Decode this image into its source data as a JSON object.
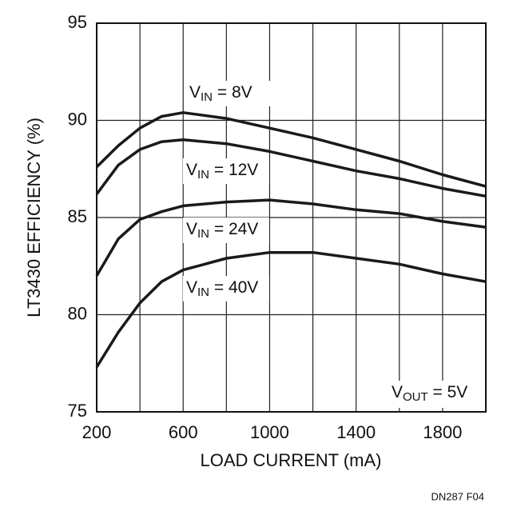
{
  "chart_data": {
    "type": "line",
    "x_label": "LOAD CURRENT (mA)",
    "y_label": "LT3430 EFFICIENCY (%)",
    "footer": "DN287 F04",
    "annotation": "VOUT = 5V",
    "x": [
      200,
      300,
      400,
      500,
      600,
      800,
      1000,
      1200,
      1400,
      1600,
      1800,
      2000
    ],
    "series": [
      {
        "name": "VIN = 8V",
        "color": "#1a1a1a",
        "values": [
          87.6,
          88.7,
          89.6,
          90.2,
          90.4,
          90.1,
          89.6,
          89.1,
          88.5,
          87.9,
          87.2,
          86.6
        ]
      },
      {
        "name": "VIN = 12V",
        "color": "#1a1a1a",
        "values": [
          86.2,
          87.7,
          88.5,
          88.9,
          89.0,
          88.8,
          88.4,
          87.9,
          87.4,
          87.0,
          86.5,
          86.1
        ]
      },
      {
        "name": "VIN = 24V",
        "color": "#1a1a1a",
        "values": [
          82.0,
          83.9,
          84.9,
          85.3,
          85.6,
          85.8,
          85.9,
          85.7,
          85.4,
          85.2,
          84.8,
          84.5
        ]
      },
      {
        "name": "VIN = 40V",
        "color": "#1a1a1a",
        "values": [
          77.3,
          79.1,
          80.6,
          81.7,
          82.3,
          82.9,
          83.2,
          83.2,
          82.9,
          82.6,
          82.1,
          81.7
        ]
      }
    ],
    "xlim": [
      200,
      2000
    ],
    "xticks": [
      200,
      600,
      1000,
      1400,
      1800
    ],
    "xminorticks": [
      400,
      800,
      1200,
      1600
    ],
    "ylim": [
      75,
      95
    ],
    "yticks": [
      75,
      80,
      85,
      90,
      95
    ],
    "grid": true
  }
}
